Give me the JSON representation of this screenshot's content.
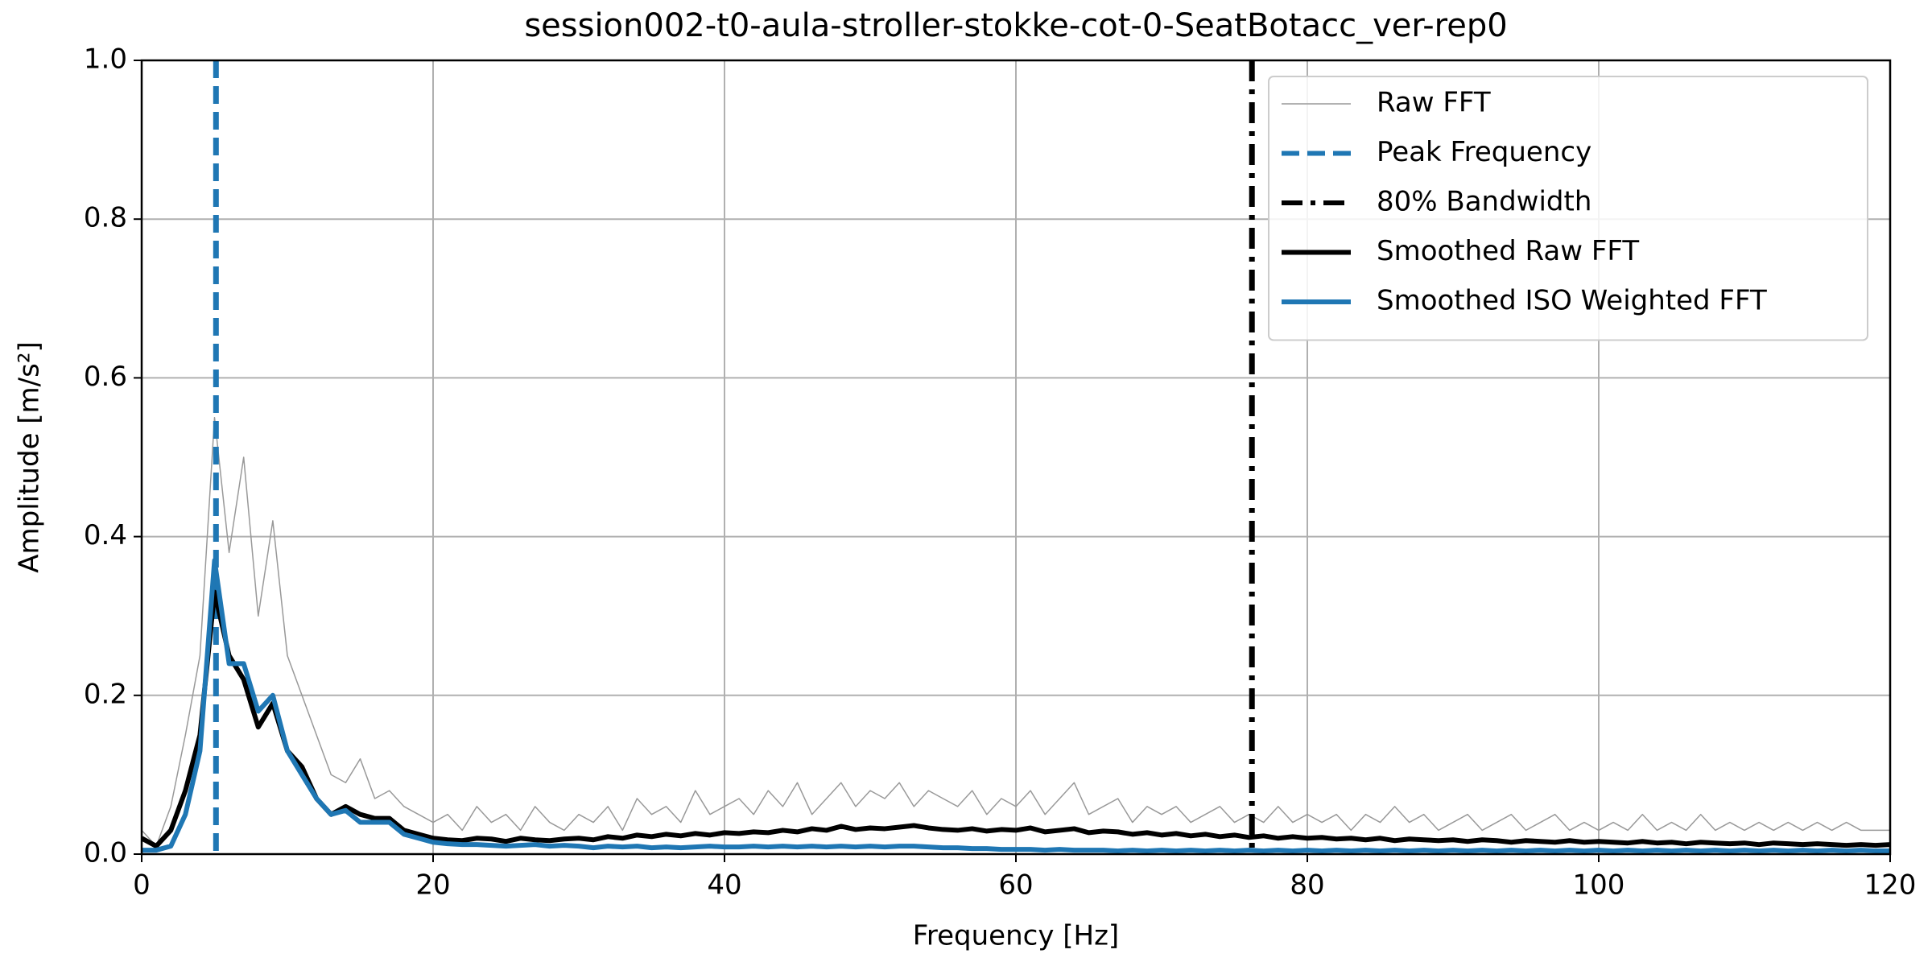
{
  "chart_data": {
    "type": "line",
    "title": "session002-t0-aula-stroller-stokke-cot-0-SeatBotacc_ver-rep0",
    "xlabel": "Frequency [Hz]",
    "ylabel": "Amplitude [m/s²]",
    "x": [
      0,
      1,
      2,
      3,
      4,
      5,
      6,
      7,
      8,
      9,
      10,
      11,
      12,
      13,
      14,
      15,
      16,
      17,
      18,
      19,
      20,
      21,
      22,
      23,
      24,
      25,
      26,
      27,
      28,
      29,
      30,
      31,
      32,
      33,
      34,
      35,
      36,
      37,
      38,
      39,
      40,
      41,
      42,
      43,
      44,
      45,
      46,
      47,
      48,
      49,
      50,
      51,
      52,
      53,
      54,
      55,
      56,
      57,
      58,
      59,
      60,
      61,
      62,
      63,
      64,
      65,
      66,
      67,
      68,
      69,
      70,
      71,
      72,
      73,
      74,
      75,
      76,
      77,
      78,
      79,
      80,
      81,
      82,
      83,
      84,
      85,
      86,
      87,
      88,
      89,
      90,
      91,
      92,
      93,
      94,
      95,
      96,
      97,
      98,
      99,
      100,
      101,
      102,
      103,
      104,
      105,
      106,
      107,
      108,
      109,
      110,
      111,
      112,
      113,
      114,
      115,
      116,
      117,
      118,
      119,
      120
    ],
    "series": [
      {
        "name": "Raw FFT",
        "color": "#999999",
        "width": 1.5,
        "values": [
          0.03,
          0.01,
          0.06,
          0.15,
          0.25,
          0.55,
          0.38,
          0.5,
          0.3,
          0.42,
          0.25,
          0.2,
          0.15,
          0.1,
          0.09,
          0.12,
          0.07,
          0.08,
          0.06,
          0.05,
          0.04,
          0.05,
          0.03,
          0.06,
          0.04,
          0.05,
          0.03,
          0.06,
          0.04,
          0.03,
          0.05,
          0.04,
          0.06,
          0.03,
          0.07,
          0.05,
          0.06,
          0.04,
          0.08,
          0.05,
          0.06,
          0.07,
          0.05,
          0.08,
          0.06,
          0.09,
          0.05,
          0.07,
          0.09,
          0.06,
          0.08,
          0.07,
          0.09,
          0.06,
          0.08,
          0.07,
          0.06,
          0.08,
          0.05,
          0.07,
          0.06,
          0.08,
          0.05,
          0.07,
          0.09,
          0.05,
          0.06,
          0.07,
          0.04,
          0.06,
          0.05,
          0.06,
          0.04,
          0.05,
          0.06,
          0.04,
          0.05,
          0.04,
          0.06,
          0.04,
          0.05,
          0.04,
          0.05,
          0.03,
          0.05,
          0.04,
          0.06,
          0.04,
          0.05,
          0.03,
          0.04,
          0.05,
          0.03,
          0.04,
          0.05,
          0.03,
          0.04,
          0.05,
          0.03,
          0.04,
          0.03,
          0.04,
          0.03,
          0.05,
          0.03,
          0.04,
          0.03,
          0.05,
          0.03,
          0.04,
          0.03,
          0.04,
          0.03,
          0.04,
          0.03,
          0.04,
          0.03,
          0.04,
          0.03,
          0.03,
          0.03
        ]
      },
      {
        "name": "Peak Frequency",
        "color": "#1f77b4",
        "x_position": 5.1,
        "style": "dashed"
      },
      {
        "name": "80% Bandwidth",
        "color": "#000000",
        "x_position": 76.2,
        "style": "dashdot"
      },
      {
        "name": "Smoothed Raw FFT",
        "color": "#000000",
        "width": 6,
        "values": [
          0.02,
          0.01,
          0.03,
          0.08,
          0.15,
          0.33,
          0.25,
          0.22,
          0.16,
          0.19,
          0.13,
          0.11,
          0.07,
          0.05,
          0.06,
          0.05,
          0.045,
          0.045,
          0.03,
          0.025,
          0.02,
          0.018,
          0.017,
          0.02,
          0.019,
          0.016,
          0.02,
          0.018,
          0.017,
          0.019,
          0.02,
          0.018,
          0.022,
          0.02,
          0.024,
          0.022,
          0.025,
          0.023,
          0.026,
          0.024,
          0.027,
          0.026,
          0.028,
          0.027,
          0.03,
          0.028,
          0.032,
          0.03,
          0.035,
          0.031,
          0.033,
          0.032,
          0.034,
          0.036,
          0.033,
          0.031,
          0.03,
          0.032,
          0.029,
          0.031,
          0.03,
          0.033,
          0.028,
          0.03,
          0.032,
          0.027,
          0.029,
          0.028,
          0.025,
          0.027,
          0.024,
          0.026,
          0.023,
          0.025,
          0.022,
          0.024,
          0.021,
          0.023,
          0.02,
          0.022,
          0.02,
          0.021,
          0.019,
          0.02,
          0.018,
          0.02,
          0.017,
          0.019,
          0.018,
          0.017,
          0.018,
          0.016,
          0.018,
          0.017,
          0.015,
          0.017,
          0.016,
          0.015,
          0.017,
          0.015,
          0.016,
          0.015,
          0.014,
          0.016,
          0.014,
          0.015,
          0.013,
          0.015,
          0.014,
          0.013,
          0.014,
          0.012,
          0.014,
          0.013,
          0.012,
          0.013,
          0.012,
          0.011,
          0.012,
          0.011,
          0.012
        ]
      },
      {
        "name": "Smoothed ISO Weighted FFT",
        "color": "#1f77b4",
        "width": 6,
        "values": [
          0.005,
          0.005,
          0.01,
          0.05,
          0.13,
          0.37,
          0.24,
          0.24,
          0.18,
          0.2,
          0.13,
          0.1,
          0.07,
          0.05,
          0.055,
          0.04,
          0.04,
          0.04,
          0.025,
          0.02,
          0.015,
          0.013,
          0.012,
          0.012,
          0.011,
          0.01,
          0.011,
          0.012,
          0.01,
          0.011,
          0.01,
          0.008,
          0.01,
          0.009,
          0.01,
          0.008,
          0.009,
          0.008,
          0.009,
          0.01,
          0.009,
          0.009,
          0.01,
          0.009,
          0.01,
          0.009,
          0.01,
          0.009,
          0.01,
          0.009,
          0.01,
          0.009,
          0.01,
          0.01,
          0.009,
          0.008,
          0.008,
          0.007,
          0.007,
          0.006,
          0.006,
          0.006,
          0.005,
          0.006,
          0.005,
          0.005,
          0.005,
          0.004,
          0.005,
          0.004,
          0.005,
          0.004,
          0.005,
          0.004,
          0.005,
          0.004,
          0.005,
          0.004,
          0.005,
          0.004,
          0.005,
          0.004,
          0.005,
          0.004,
          0.005,
          0.004,
          0.005,
          0.004,
          0.005,
          0.004,
          0.005,
          0.004,
          0.005,
          0.004,
          0.005,
          0.004,
          0.005,
          0.004,
          0.005,
          0.004,
          0.005,
          0.004,
          0.005,
          0.004,
          0.005,
          0.004,
          0.005,
          0.004,
          0.005,
          0.004,
          0.005,
          0.004,
          0.005,
          0.004,
          0.005,
          0.004,
          0.005,
          0.004,
          0.005,
          0.004,
          0.004
        ]
      }
    ],
    "xlim": [
      0,
      120
    ],
    "xticks": [
      0,
      20,
      40,
      60,
      80,
      100,
      120
    ],
    "ylim": [
      0,
      1
    ],
    "yticks": [
      {
        "value": 0,
        "label": "0.0"
      },
      0.2,
      0.4,
      0.6,
      0.8,
      {
        "value": 1,
        "label": "1.0"
      }
    ],
    "grid": true,
    "legend": "upper right"
  }
}
